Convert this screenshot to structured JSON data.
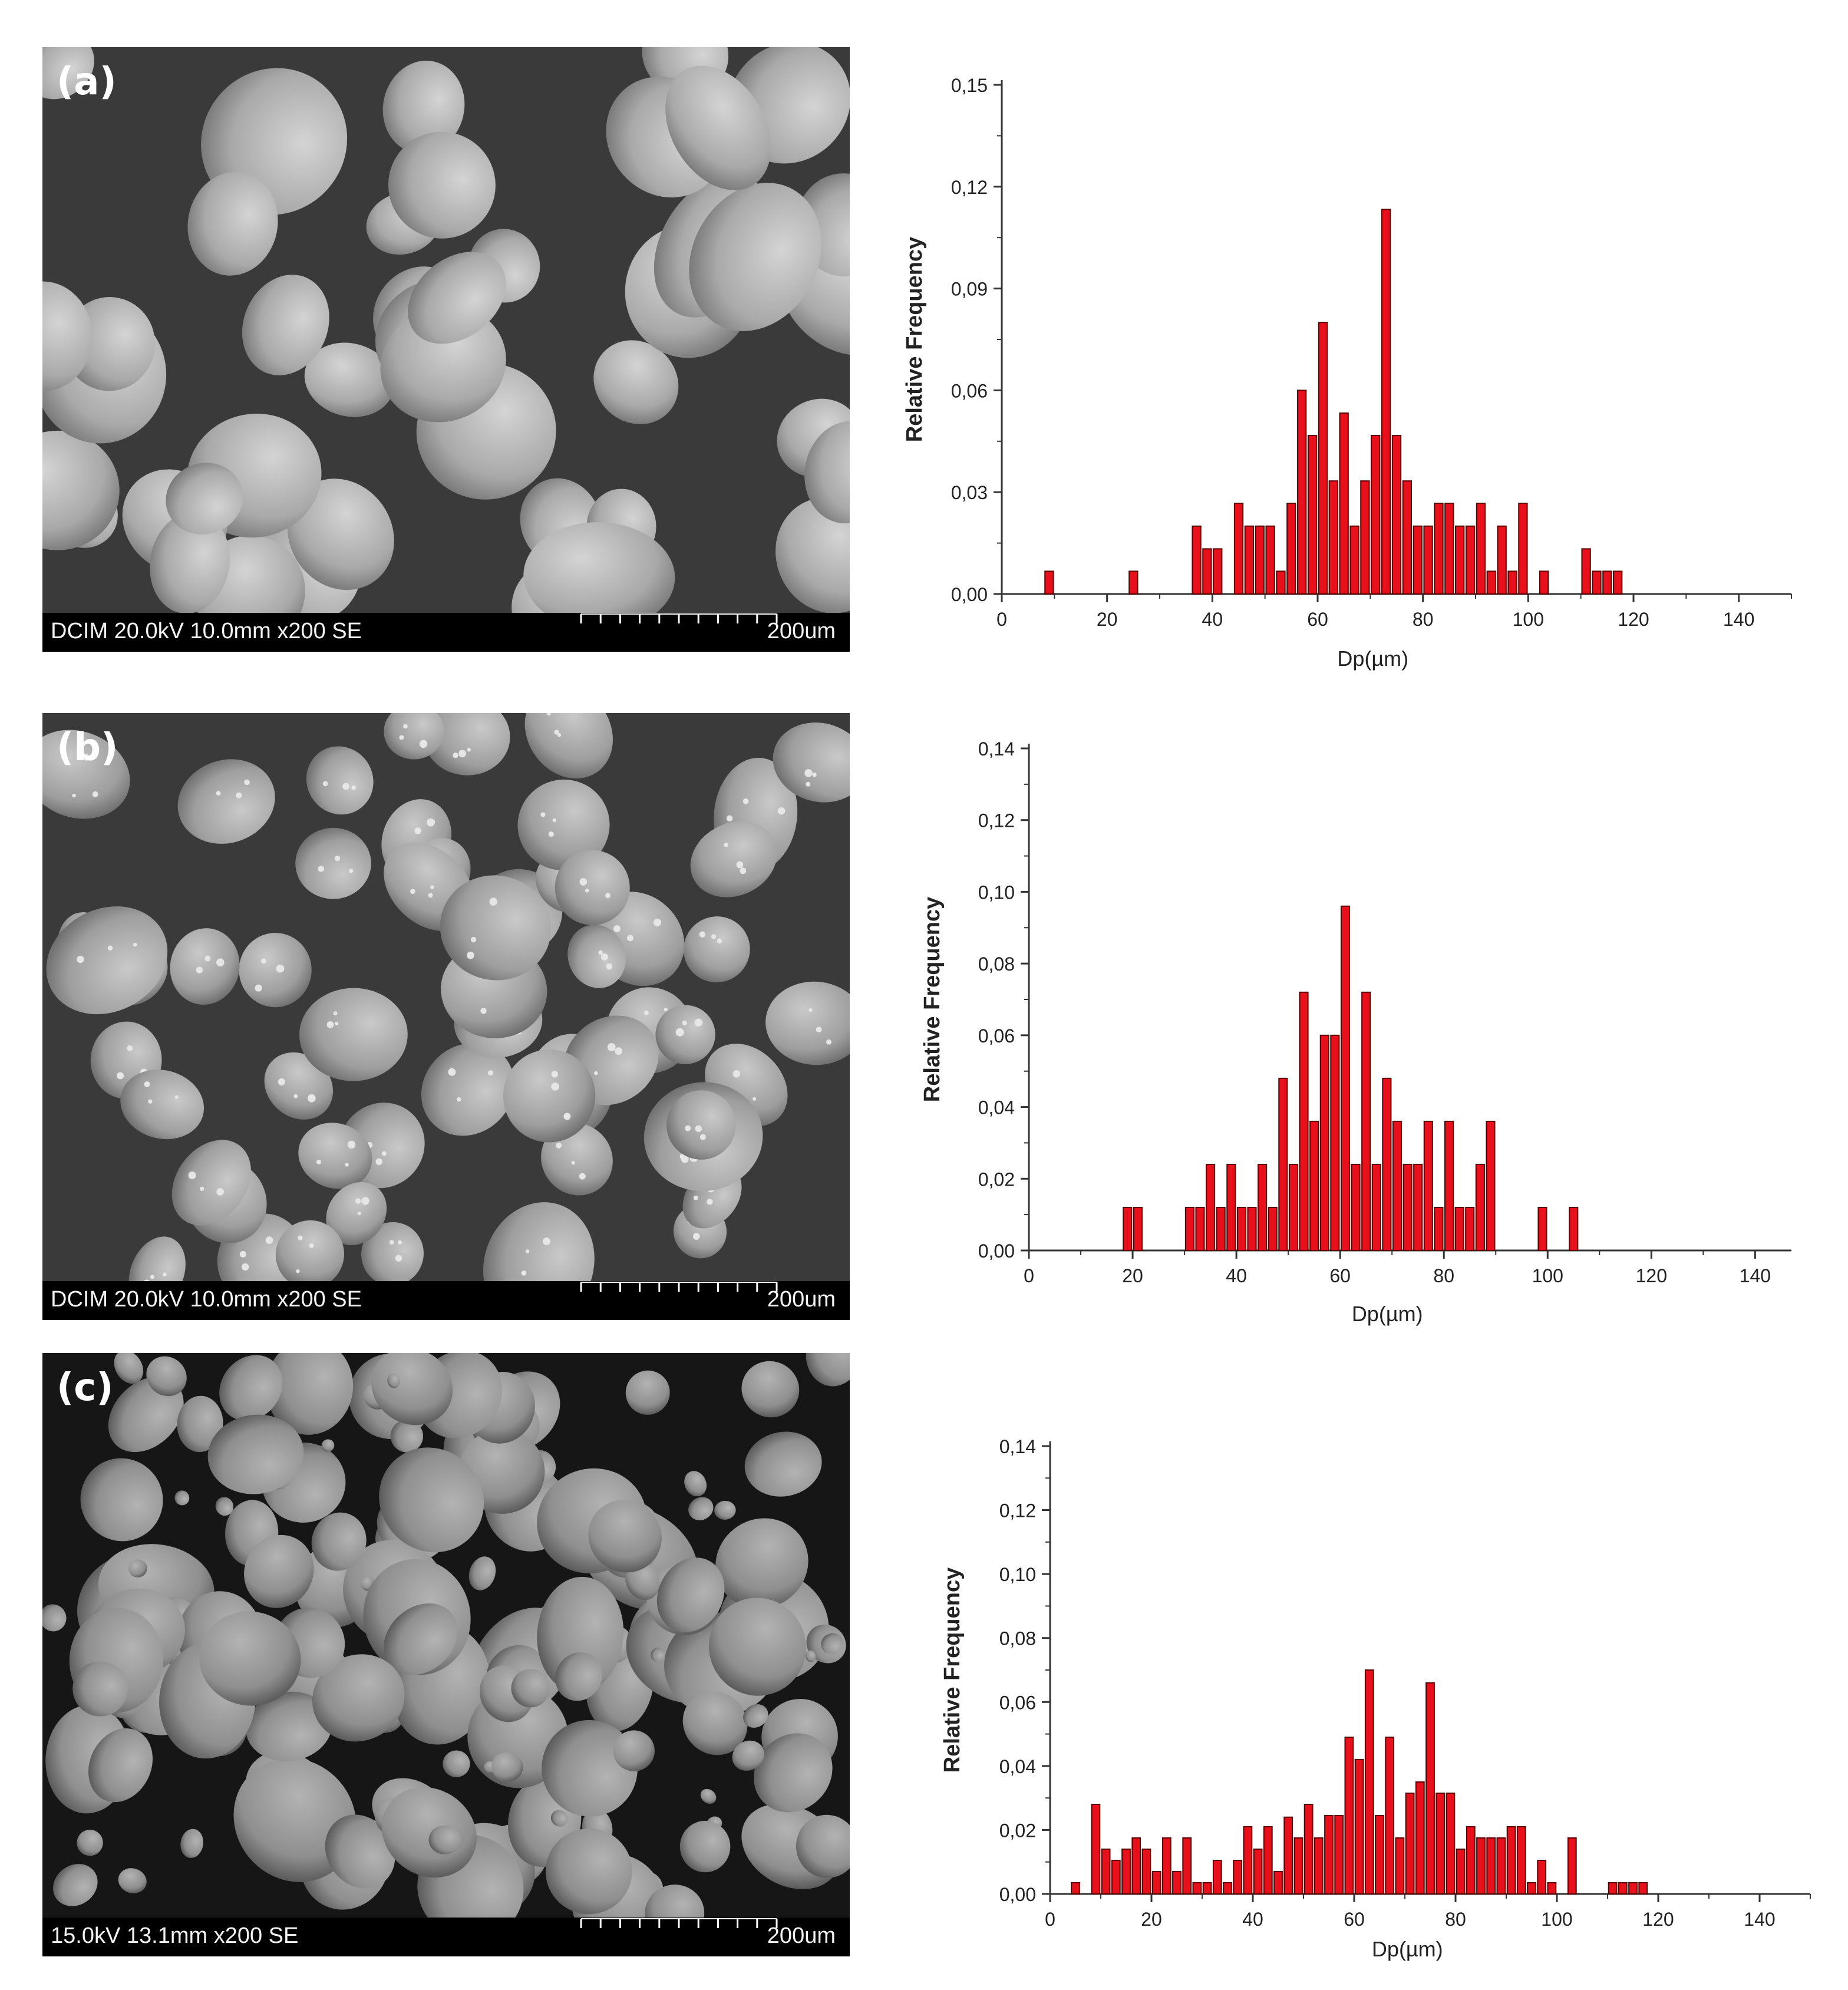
{
  "panels": [
    {
      "letter": "(a)",
      "sem": {
        "info": "DCIM 20.0kV 10.0mm x200 SE",
        "scale": "200um"
      },
      "chart_data": {
        "type": "bar",
        "xlabel": "Dp(µm)",
        "ylabel": "Relative Frequency",
        "xlim": [
          0,
          150
        ],
        "ylim": [
          0,
          0.15
        ],
        "xticks": [
          0,
          20,
          40,
          60,
          80,
          100,
          120,
          140
        ],
        "yticks": [
          0,
          0.03,
          0.06,
          0.09,
          0.12,
          0.15
        ],
        "ytick_labels": [
          "0,00",
          "0,03",
          "0,06",
          "0,09",
          "0,12",
          "0,15"
        ],
        "bin_width": 1.6,
        "bar_color": "#e8101a",
        "x": [
          9,
          25,
          37,
          39,
          41,
          45,
          47,
          49,
          51,
          53,
          55,
          57,
          59,
          61,
          63,
          65,
          67,
          69,
          71,
          73,
          75,
          77,
          79,
          81,
          83,
          85,
          87,
          89,
          91,
          93,
          95,
          97,
          99,
          103,
          111,
          113,
          115,
          117
        ],
        "values": [
          0.0067,
          0.0067,
          0.02,
          0.0133,
          0.0133,
          0.0267,
          0.02,
          0.02,
          0.02,
          0.0067,
          0.0267,
          0.06,
          0.0467,
          0.08,
          0.0333,
          0.0533,
          0.02,
          0.0333,
          0.0467,
          0.1133,
          0.0467,
          0.0333,
          0.02,
          0.02,
          0.0267,
          0.0267,
          0.02,
          0.02,
          0.0267,
          0.0067,
          0.02,
          0.0067,
          0.0267,
          0.0067,
          0.0133,
          0.0067,
          0.0067,
          0.0067
        ]
      }
    },
    {
      "letter": "(b)",
      "sem": {
        "info": "DCIM 20.0kV 10.0mm x200 SE",
        "scale": "200um"
      },
      "chart_data": {
        "type": "bar",
        "xlabel": "Dp(µm)",
        "ylabel": "Relative Frequency",
        "xlim": [
          0,
          147
        ],
        "ylim": [
          0,
          0.14
        ],
        "xticks": [
          0,
          20,
          40,
          60,
          80,
          100,
          120,
          140
        ],
        "yticks": [
          0,
          0.02,
          0.04,
          0.06,
          0.08,
          0.1,
          0.12,
          0.14
        ],
        "ytick_labels": [
          "0,00",
          "0,02",
          "0,04",
          "0,06",
          "0,08",
          "0,10",
          "0,12",
          "0,14"
        ],
        "bin_width": 1.6,
        "bar_color": "#e8101a",
        "x": [
          19,
          21,
          31,
          33,
          35,
          37,
          39,
          41,
          43,
          45,
          47,
          49,
          51,
          53,
          55,
          57,
          59,
          61,
          63,
          65,
          67,
          69,
          71,
          73,
          75,
          77,
          79,
          81,
          83,
          85,
          87,
          89,
          99,
          105
        ],
        "values": [
          0.012,
          0.012,
          0.012,
          0.012,
          0.024,
          0.012,
          0.024,
          0.012,
          0.012,
          0.024,
          0.012,
          0.048,
          0.024,
          0.072,
          0.036,
          0.06,
          0.06,
          0.096,
          0.024,
          0.072,
          0.024,
          0.048,
          0.036,
          0.024,
          0.024,
          0.036,
          0.012,
          0.036,
          0.012,
          0.012,
          0.024,
          0.036,
          0.012,
          0.012
        ]
      }
    },
    {
      "letter": "(c)",
      "sem": {
        "info": "15.0kV 13.1mm x200 SE",
        "scale": "200um"
      },
      "chart_data": {
        "type": "bar",
        "xlabel": "Dp(µm)",
        "ylabel": "Relative Frequency",
        "xlim": [
          0,
          150
        ],
        "ylim": [
          0,
          0.14
        ],
        "xticks": [
          0,
          20,
          40,
          60,
          80,
          100,
          120,
          140
        ],
        "yticks": [
          0,
          0.02,
          0.04,
          0.06,
          0.08,
          0.1,
          0.12,
          0.14
        ],
        "ytick_labels": [
          "0,00",
          "0,02",
          "0,04",
          "0,06",
          "0,08",
          "0,10",
          "0,12",
          "0,14"
        ],
        "bin_width": 1.6,
        "bar_color": "#e8101a",
        "x": [
          5,
          9,
          11,
          13,
          15,
          17,
          19,
          21,
          23,
          25,
          27,
          29,
          31,
          33,
          35,
          37,
          39,
          41,
          43,
          45,
          47,
          49,
          51,
          53,
          55,
          57,
          59,
          61,
          63,
          65,
          67,
          69,
          71,
          73,
          75,
          77,
          79,
          81,
          83,
          85,
          87,
          89,
          91,
          93,
          95,
          97,
          99,
          103,
          111,
          113,
          115,
          117
        ],
        "values": [
          0.0035,
          0.028,
          0.014,
          0.0105,
          0.014,
          0.0175,
          0.014,
          0.007,
          0.0175,
          0.007,
          0.0175,
          0.0035,
          0.0035,
          0.0105,
          0.0035,
          0.0105,
          0.021,
          0.014,
          0.021,
          0.007,
          0.024,
          0.0175,
          0.028,
          0.0175,
          0.0245,
          0.0245,
          0.049,
          0.042,
          0.07,
          0.0245,
          0.049,
          0.0175,
          0.0315,
          0.035,
          0.066,
          0.0315,
          0.0315,
          0.014,
          0.021,
          0.0175,
          0.0175,
          0.0175,
          0.021,
          0.021,
          0.0035,
          0.0105,
          0.0035,
          0.0175,
          0.0035,
          0.0035,
          0.0035,
          0.0035
        ]
      }
    }
  ]
}
